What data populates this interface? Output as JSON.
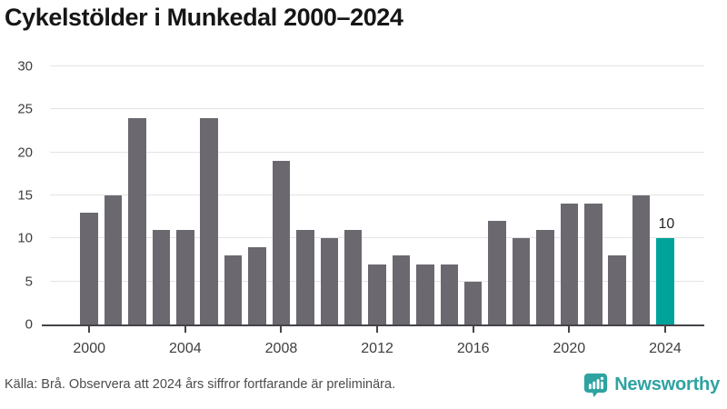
{
  "title": "Cykelstölder i Munkedal 2000–2024",
  "chart_data": {
    "type": "bar",
    "title": "Cykelstölder i Munkedal 2000–2024",
    "categories": [
      2000,
      2001,
      2002,
      2003,
      2004,
      2005,
      2006,
      2007,
      2008,
      2009,
      2010,
      2011,
      2012,
      2013,
      2014,
      2015,
      2016,
      2017,
      2018,
      2019,
      2020,
      2021,
      2022,
      2023,
      2024
    ],
    "values": [
      13,
      15,
      24,
      11,
      11,
      24,
      8,
      9,
      19,
      11,
      10,
      11,
      7,
      8,
      7,
      7,
      5,
      12,
      10,
      11,
      14,
      14,
      8,
      15,
      10
    ],
    "xlabel": "",
    "ylabel": "",
    "ylim": [
      0,
      30
    ],
    "yticks": [
      0,
      5,
      10,
      15,
      20,
      25,
      30
    ],
    "xticks": [
      2000,
      2004,
      2008,
      2012,
      2016,
      2020,
      2024
    ],
    "grid": true,
    "legend": "none",
    "bar_color": "#6b6870",
    "highlight_index": 24,
    "highlight_color": "#00a39a",
    "highlight_value_label": "10"
  },
  "footer": {
    "source_text": "Källa: Brå. Observera att 2024 års siffror fortfarande är preliminära.",
    "brand": "Newsworthy",
    "brand_color": "#2ea3a1"
  },
  "icons": {
    "logo": "newsworthy-speech-bubble-bar-chart-icon"
  }
}
